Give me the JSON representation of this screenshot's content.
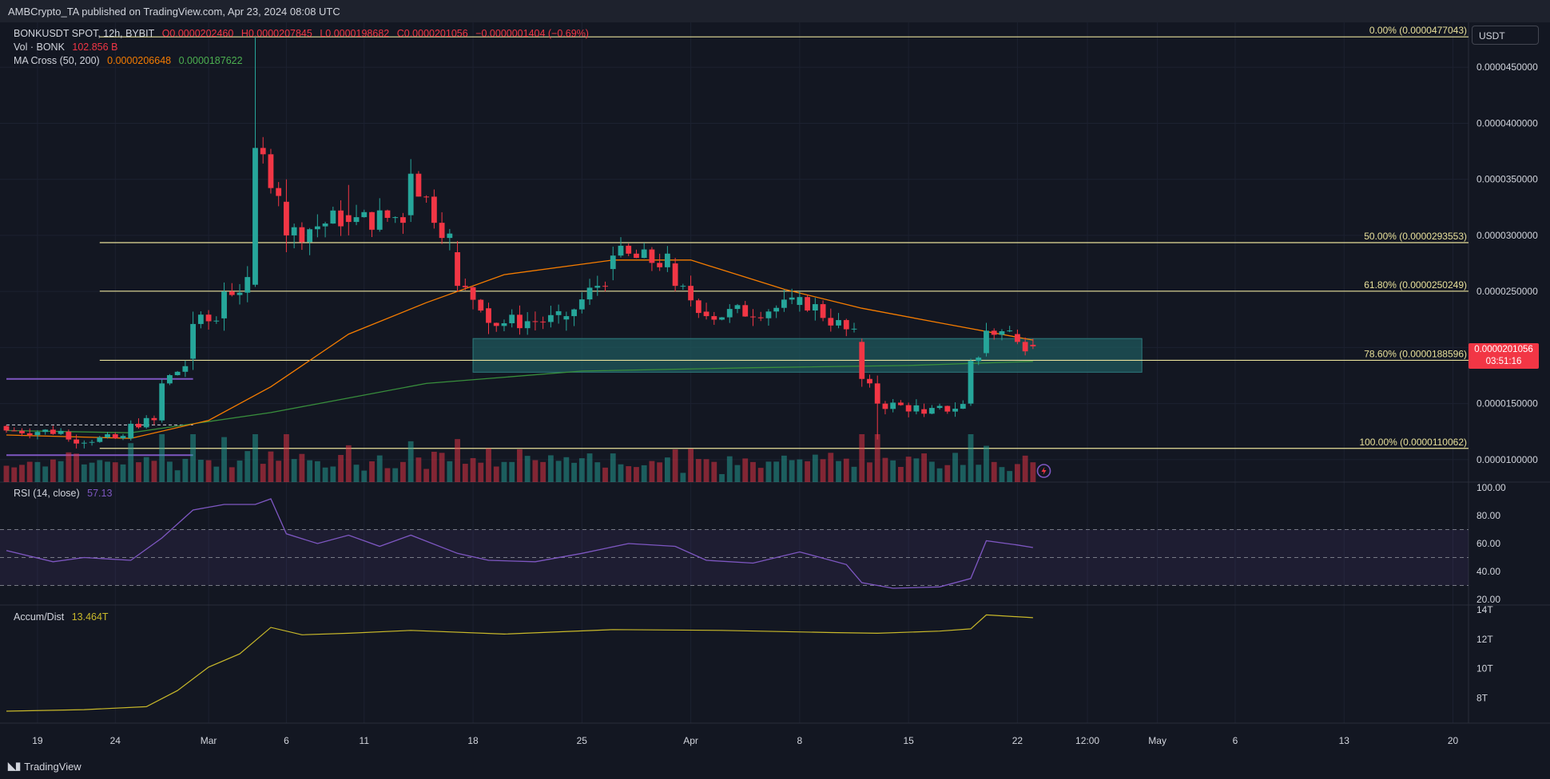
{
  "header": {
    "published": "AMBCrypto_TA published on TradingView.com, Apr 23, 2024 08:08 UTC"
  },
  "legend": {
    "symbol": "BONKUSDT SPOT, 12h, BYBIT",
    "open": "O0.0000202460",
    "high": "H0.0000207845",
    "low": "L0.0000198682",
    "close": "C0.0000201056",
    "change": "−0.0000001404 (−0.69%)",
    "vol_label": "Vol · BONK",
    "vol_value": "102.856 B",
    "ma_label": "MA Cross (50, 200)",
    "ma50_value": "0.0000206648",
    "ma200_value": "0.0000187622",
    "rsi_label": "RSI (14, close)",
    "rsi_value": "57.13",
    "ad_label": "Accum/Dist",
    "ad_value": "13.464T"
  },
  "price_axis": {
    "unit": "USDT",
    "labels": [
      "0.0000450000",
      "0.0000400000",
      "0.0000350000",
      "0.0000300000",
      "0.0000250000",
      "0.0000150000",
      "0.0000100000"
    ],
    "current_price": "0.0000201056",
    "countdown": "03:51:16"
  },
  "rsi_axis": {
    "labels": [
      "100.00",
      "80.00",
      "60.00",
      "40.00",
      "20.00"
    ]
  },
  "ad_axis": {
    "labels": [
      "14T",
      "12T",
      "10T",
      "8T"
    ]
  },
  "time_axis": {
    "labels": [
      "19",
      "24",
      "Mar",
      "6",
      "11",
      "18",
      "25",
      "Apr",
      "8",
      "15",
      "22",
      "12:00",
      "May",
      "6",
      "13",
      "20"
    ]
  },
  "footer": {
    "brand": "TradingView"
  },
  "colors": {
    "up": "#26a69a",
    "down": "#f23645",
    "ma50": "#f57c00",
    "ma200": "#388e3c",
    "fib": "#e8e09a",
    "rsi": "#7e57c2",
    "ad": "#c9b92a",
    "zone": "#1f5a5e",
    "support": "#7e57c2"
  },
  "chart_data": [
    {
      "type": "candlestick",
      "title": "BONKUSDT SPOT, 12h, BYBIT",
      "series_name": "BONKUSDT",
      "x_start": "2024-02-17",
      "x_end": "2024-05-21",
      "candle_interval": "12h",
      "ylim": [
        8e-06,
        4.9e-05
      ],
      "ohlc_points": [
        [
          "2024-02-17",
          1.3e-05,
          1.31e-05,
          1.24e-05,
          1.26e-05
        ],
        [
          "2024-02-21",
          1.25e-05,
          1.27e-05,
          1.16e-05,
          1.18e-05
        ],
        [
          "2024-02-25",
          1.19e-05,
          1.35e-05,
          1.17e-05,
          1.32e-05
        ],
        [
          "2024-02-27",
          1.35e-05,
          1.72e-05,
          1.33e-05,
          1.68e-05
        ],
        [
          "2024-02-29",
          1.9e-05,
          2.32e-05,
          1.8e-05,
          2.21e-05
        ],
        [
          "2024-03-02",
          2.26e-05,
          2.58e-05,
          2.15e-05,
          2.5e-05
        ],
        [
          "2024-03-04",
          2.56e-05,
          4.78e-05,
          2.54e-05,
          3.78e-05
        ],
        [
          "2024-03-06",
          3.3e-05,
          3.5e-05,
          2.85e-05,
          3e-05
        ],
        [
          "2024-03-10",
          3.18e-05,
          3.45e-05,
          3e-05,
          3.12e-05
        ],
        [
          "2024-03-14",
          3.18e-05,
          3.68e-05,
          3.12e-05,
          3.55e-05
        ],
        [
          "2024-03-17",
          2.85e-05,
          2.95e-05,
          2.5e-05,
          2.55e-05
        ],
        [
          "2024-03-19",
          2.35e-05,
          2.4e-05,
          2.12e-05,
          2.22e-05
        ],
        [
          "2024-03-24",
          2.25e-05,
          2.32e-05,
          2.15e-05,
          2.28e-05
        ],
        [
          "2024-03-27",
          2.7e-05,
          2.9e-05,
          2.6e-05,
          2.82e-05
        ],
        [
          "2024-03-31",
          2.75e-05,
          2.8e-05,
          2.5e-05,
          2.55e-05
        ],
        [
          "2024-04-02",
          2.32e-05,
          2.4e-05,
          2.25e-05,
          2.28e-05
        ],
        [
          "2024-04-08",
          2.38e-05,
          2.5e-05,
          2.32e-05,
          2.45e-05
        ],
        [
          "2024-04-12",
          2.05e-05,
          2.08e-05,
          1.65e-05,
          1.72e-05
        ],
        [
          "2024-04-13",
          1.68e-05,
          1.75e-05,
          1.18e-05,
          1.5e-05
        ],
        [
          "2024-04-16",
          1.45e-05,
          1.5e-05,
          1.38e-05,
          1.41e-05
        ],
        [
          "2024-04-19",
          1.5e-05,
          1.9e-05,
          1.48e-05,
          1.88e-05
        ],
        [
          "2024-04-20",
          1.95e-05,
          2.22e-05,
          1.92e-05,
          2.15e-05
        ],
        [
          "2024-04-22",
          2.12e-05,
          2.16e-05,
          2.03e-05,
          2.05e-05
        ],
        [
          "2024-04-23",
          2.0246e-05,
          2.07845e-05,
          1.98682e-05,
          2.01056e-05
        ]
      ],
      "fib_levels": [
        {
          "label": "0.00% (0.0000477043)",
          "price": 4.77043e-05
        },
        {
          "label": "50.00% (0.0000293553)",
          "price": 2.93553e-05
        },
        {
          "label": "61.80% (0.0000250249)",
          "price": 2.50249e-05
        },
        {
          "label": "78.60% (0.0000188596)",
          "price": 1.88596e-05
        },
        {
          "label": "100.00% (0.0000110062)",
          "price": 1.10062e-05
        }
      ],
      "zone": {
        "top": 2.08e-05,
        "bottom": 1.78e-05
      },
      "ma50_points": [
        [
          "2024-02-17",
          1.22e-05
        ],
        [
          "2024-02-25",
          1.19e-05
        ],
        [
          "2024-03-01",
          1.35e-05
        ],
        [
          "2024-03-05",
          1.65e-05
        ],
        [
          "2024-03-10",
          2.12e-05
        ],
        [
          "2024-03-15",
          2.4e-05
        ],
        [
          "2024-03-20",
          2.65e-05
        ],
        [
          "2024-03-27",
          2.78e-05
        ],
        [
          "2024-04-01",
          2.78e-05
        ],
        [
          "2024-04-07",
          2.52e-05
        ],
        [
          "2024-04-12",
          2.35e-05
        ],
        [
          "2024-04-17",
          2.22e-05
        ],
        [
          "2024-04-23",
          2.06648e-05
        ]
      ],
      "ma200_points": [
        [
          "2024-02-17",
          1.26e-05
        ],
        [
          "2024-02-25",
          1.24e-05
        ],
        [
          "2024-03-05",
          1.42e-05
        ],
        [
          "2024-03-15",
          1.68e-05
        ],
        [
          "2024-03-25",
          1.79e-05
        ],
        [
          "2024-04-05",
          1.82e-05
        ],
        [
          "2024-04-15",
          1.84e-05
        ],
        [
          "2024-04-23",
          1.87622e-05
        ]
      ]
    },
    {
      "type": "bar",
      "series_name": "Vol · BONK",
      "current_value": "102.856 B"
    },
    {
      "type": "line",
      "series_name": "RSI (14, close)",
      "ylim": [
        20,
        100
      ],
      "bands": [
        30,
        50,
        70
      ],
      "points": [
        [
          "2024-02-17",
          55
        ],
        [
          "2024-02-20",
          47
        ],
        [
          "2024-02-22",
          50
        ],
        [
          "2024-02-25",
          48
        ],
        [
          "2024-02-27",
          64
        ],
        [
          "2024-02-29",
          84
        ],
        [
          "2024-03-02",
          88
        ],
        [
          "2024-03-04",
          88
        ],
        [
          "2024-03-05",
          92
        ],
        [
          "2024-03-06",
          67
        ],
        [
          "2024-03-08",
          60
        ],
        [
          "2024-03-10",
          66
        ],
        [
          "2024-03-12",
          58
        ],
        [
          "2024-03-14",
          66
        ],
        [
          "2024-03-17",
          53
        ],
        [
          "2024-03-19",
          48
        ],
        [
          "2024-03-22",
          47
        ],
        [
          "2024-03-25",
          53
        ],
        [
          "2024-03-28",
          60
        ],
        [
          "2024-03-31",
          58
        ],
        [
          "2024-04-02",
          48
        ],
        [
          "2024-04-05",
          46
        ],
        [
          "2024-04-08",
          54
        ],
        [
          "2024-04-11",
          45
        ],
        [
          "2024-04-12",
          32
        ],
        [
          "2024-04-14",
          28
        ],
        [
          "2024-04-17",
          29
        ],
        [
          "2024-04-19",
          35
        ],
        [
          "2024-04-20",
          62
        ],
        [
          "2024-04-22",
          59
        ],
        [
          "2024-04-23",
          57.13
        ]
      ]
    },
    {
      "type": "line",
      "series_name": "Accum/Dist",
      "ylim": [
        6.5,
        14
      ],
      "points": [
        [
          "2024-02-17",
          7.1
        ],
        [
          "2024-02-22",
          7.2
        ],
        [
          "2024-02-26",
          7.4
        ],
        [
          "2024-02-28",
          8.5
        ],
        [
          "2024-03-01",
          10.1
        ],
        [
          "2024-03-03",
          11.0
        ],
        [
          "2024-03-05",
          12.8
        ],
        [
          "2024-03-07",
          12.3
        ],
        [
          "2024-03-10",
          12.4
        ],
        [
          "2024-03-14",
          12.6
        ],
        [
          "2024-03-20",
          12.35
        ],
        [
          "2024-03-27",
          12.65
        ],
        [
          "2024-04-03",
          12.6
        ],
        [
          "2024-04-10",
          12.45
        ],
        [
          "2024-04-13",
          12.4
        ],
        [
          "2024-04-17",
          12.55
        ],
        [
          "2024-04-19",
          12.7
        ],
        [
          "2024-04-20",
          13.65
        ],
        [
          "2024-04-23",
          13.464
        ]
      ]
    }
  ]
}
